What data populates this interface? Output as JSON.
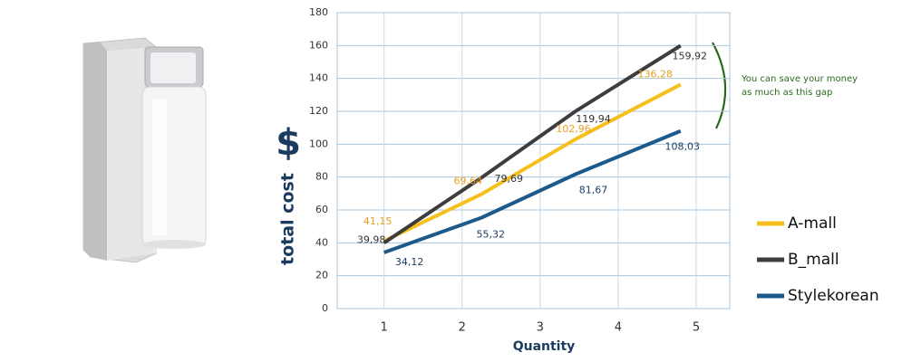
{
  "chart_data": {
    "type": "line",
    "y_symbol": "$",
    "ylabel": "total cost",
    "xlabel": "Quantity",
    "annotation": [
      "You can save your money",
      "as much as this gap"
    ],
    "xlim": [
      0.4,
      5.43
    ],
    "xticks": [
      1,
      2,
      3,
      4,
      5
    ],
    "ylim": [
      0,
      180
    ],
    "yticks": [
      0,
      20,
      40,
      60,
      80,
      100,
      120,
      140,
      160,
      180
    ],
    "grid": true,
    "legend": "right",
    "x": [
      1,
      2.25,
      3.45,
      4.8
    ],
    "series": [
      {
        "name": "A-mall",
        "color": "#f6bf1c",
        "label_color": "#e8a01e",
        "values": [
          41.15,
          69.64,
          102.96,
          136.28
        ],
        "value_labels": [
          "41,15",
          "69,64",
          "102,96",
          "136,28"
        ]
      },
      {
        "name": "B_mall",
        "color": "#3d3d3d",
        "label_color": "#333333",
        "values": [
          39.98,
          79.69,
          119.94,
          159.92
        ],
        "value_labels": [
          "39,98",
          "79,69",
          "119,94",
          "159,92"
        ]
      },
      {
        "name": "Stylekorean",
        "color": "#1d5a8c",
        "label_color": "#1b3b5e",
        "values": [
          34.12,
          55.32,
          81.67,
          108.03
        ],
        "value_labels": [
          "34,12",
          "55,32",
          "81,67",
          "108,03"
        ]
      }
    ]
  }
}
